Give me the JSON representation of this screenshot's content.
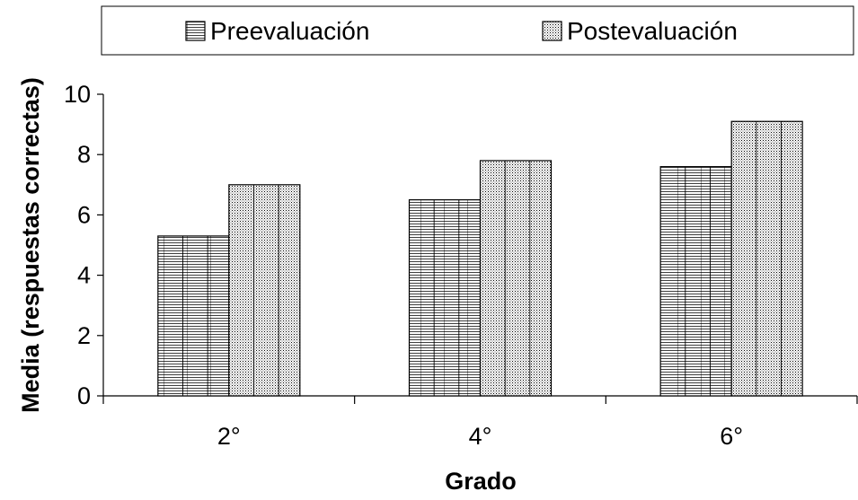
{
  "chart_data": {
    "type": "bar",
    "categories": [
      "2°",
      "4°",
      "6°"
    ],
    "series": [
      {
        "name": "Preevaluación",
        "values": [
          5.3,
          6.5,
          7.6
        ]
      },
      {
        "name": "Postevaluación",
        "values": [
          7.0,
          7.8,
          9.1
        ]
      }
    ],
    "xlabel": "Grado",
    "ylabel": "Media (respuestas correctas)",
    "ylim": [
      0,
      10
    ],
    "yticks": [
      0,
      2,
      4,
      6,
      8,
      10
    ],
    "grid": false,
    "legend_position": "top"
  },
  "colors": {
    "bar_fill": "#ffffff",
    "stroke": "#000000"
  }
}
